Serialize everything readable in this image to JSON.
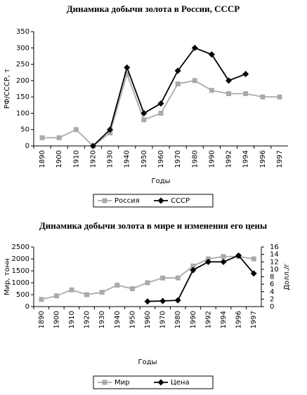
{
  "chart_data": [
    {
      "type": "line",
      "title": "Динамика добычи золота в России, СССР",
      "x_label": "Годы",
      "y_label": "РФ/СССР, т",
      "categories": [
        "1890",
        "1900",
        "1910",
        "1920",
        "1930",
        "1940",
        "1950",
        "1960",
        "1970",
        "1980",
        "1990",
        "1992",
        "1994",
        "1996",
        "1997"
      ],
      "series": [
        {
          "name": "Россия",
          "color": "#aaaaaa",
          "marker": "square",
          "values": [
            25,
            25,
            50,
            0,
            40,
            220,
            80,
            100,
            190,
            200,
            170,
            160,
            160,
            150,
            150
          ]
        },
        {
          "name": "СССР",
          "color": "#000000",
          "marker": "diamond",
          "values": [
            null,
            null,
            null,
            0,
            50,
            240,
            100,
            130,
            230,
            300,
            280,
            200,
            220,
            null,
            null
          ]
        }
      ],
      "ylim": [
        0,
        350
      ],
      "yticks": [
        0,
        50,
        100,
        150,
        200,
        250,
        300,
        350
      ],
      "legend": "bottom"
    },
    {
      "type": "line",
      "title": "Динамика добычи золота в мире и изменения его цены",
      "x_label": "Годы",
      "y_label": "Мир, тонн",
      "y2_label": "Долл./г",
      "categories": [
        "1890",
        "1900",
        "1910",
        "1920",
        "1930",
        "1940",
        "1950",
        "1960",
        "1970",
        "1980",
        "1990",
        "1992",
        "1994",
        "1996",
        "1997"
      ],
      "series": [
        {
          "name": "Мир",
          "color": "#aaaaaa",
          "marker": "square",
          "values": [
            300,
            450,
            700,
            500,
            600,
            900,
            750,
            1000,
            1200,
            1200,
            1700,
            2000,
            2100,
            2100,
            2000
          ]
        },
        {
          "name": "Цена",
          "color": "#000000",
          "marker": "diamond",
          "axis": "y2",
          "values": [
            null,
            null,
            null,
            null,
            null,
            null,
            null,
            1.4,
            1.5,
            1.7,
            9.8,
            12,
            12,
            13.7,
            8.9
          ]
        }
      ],
      "ylim": [
        0,
        2500
      ],
      "yticks": [
        0,
        500,
        1000,
        1500,
        2000,
        2500
      ],
      "y2lim": [
        0,
        16
      ],
      "y2ticks": [
        0,
        2,
        4,
        6,
        8,
        10,
        12,
        14,
        16
      ],
      "legend": "bottom"
    }
  ]
}
